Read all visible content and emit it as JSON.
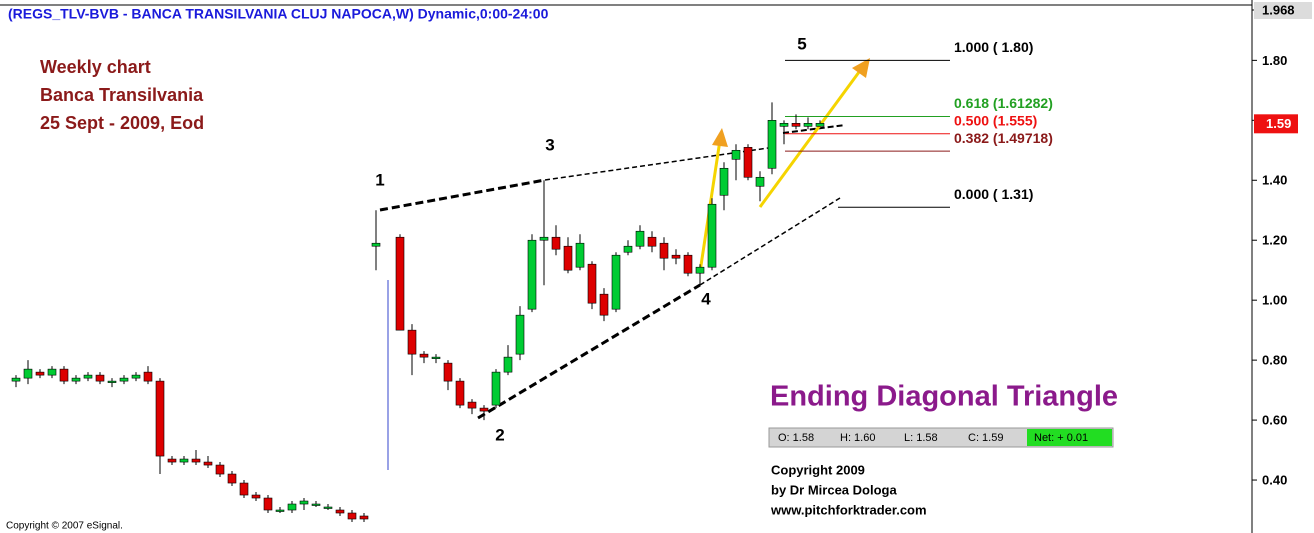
{
  "chart_data": {
    "type": "candlestick",
    "title": "(REGS_TLV-BVB - BANCA TRANSILVANIA CLUJ NAPOCA,W) Dynamic,0:00-24:00",
    "up_color": "#00cc33",
    "down_color": "#dd0000",
    "ylim": [
      0.23,
      1.968
    ],
    "yticks": [
      {
        "value": 0.4,
        "label": "0.40"
      },
      {
        "value": 0.6,
        "label": "0.60"
      },
      {
        "value": 0.8,
        "label": "0.80"
      },
      {
        "value": 1.0,
        "label": "1.00"
      },
      {
        "value": 1.2,
        "label": "1.20"
      },
      {
        "value": 1.4,
        "label": "1.40"
      },
      {
        "value": 1.6,
        "label": "1.60"
      },
      {
        "value": 1.8,
        "label": "1.80"
      },
      1.968
    ],
    "last_price": {
      "value": 1.59,
      "label": "1.59"
    },
    "series": {
      "open": [
        0.73,
        0.74,
        0.76,
        0.75,
        0.77,
        0.73,
        0.74,
        0.75,
        0.73,
        0.73,
        0.74,
        0.76,
        0.73,
        0.47,
        0.46,
        0.47,
        0.46,
        0.45,
        0.42,
        0.39,
        0.35,
        0.34,
        0.3,
        0.3,
        0.32,
        0.32,
        0.31,
        0.3,
        0.29,
        0.28,
        1.18,
        null,
        1.21,
        0.9,
        0.82,
        0.81,
        0.79,
        0.73,
        0.66,
        0.64,
        0.65,
        0.76,
        0.82,
        0.97,
        1.2,
        1.21,
        1.18,
        1.11,
        1.12,
        1.02,
        0.97,
        1.16,
        1.18,
        1.21,
        1.19,
        1.15,
        1.15,
        1.09,
        1.11,
        1.35,
        1.47,
        1.51,
        1.38,
        1.44,
        1.58,
        1.59,
        1.58,
        1.58
      ],
      "high": [
        0.75,
        0.8,
        0.77,
        0.78,
        0.78,
        0.75,
        0.76,
        0.76,
        0.74,
        0.75,
        0.76,
        0.78,
        0.74,
        0.48,
        0.48,
        0.5,
        0.48,
        0.46,
        0.43,
        0.4,
        0.36,
        0.35,
        0.31,
        0.33,
        0.34,
        0.33,
        0.32,
        0.31,
        0.3,
        0.29,
        1.3,
        null,
        1.22,
        0.92,
        0.83,
        0.82,
        0.8,
        0.74,
        0.67,
        0.65,
        0.77,
        0.85,
        0.98,
        1.22,
        1.4,
        1.25,
        1.21,
        1.22,
        1.13,
        1.04,
        1.16,
        1.2,
        1.25,
        1.23,
        1.21,
        1.17,
        1.16,
        1.12,
        1.34,
        1.46,
        1.52,
        1.52,
        1.43,
        1.66,
        1.6,
        1.62,
        1.61,
        1.6
      ],
      "low": [
        0.71,
        0.72,
        0.74,
        0.74,
        0.72,
        0.72,
        0.73,
        0.72,
        0.71,
        0.72,
        0.73,
        0.72,
        0.42,
        0.45,
        0.45,
        0.45,
        0.44,
        0.41,
        0.38,
        0.34,
        0.33,
        0.29,
        0.29,
        0.29,
        0.3,
        0.31,
        0.3,
        0.28,
        0.26,
        0.26,
        1.1,
        null,
        0.9,
        0.75,
        0.79,
        0.79,
        0.7,
        0.64,
        0.62,
        0.6,
        0.64,
        0.75,
        0.8,
        0.96,
        1.05,
        1.15,
        1.09,
        1.1,
        0.97,
        0.93,
        0.96,
        1.15,
        1.17,
        1.16,
        1.1,
        1.12,
        1.08,
        1.05,
        1.1,
        1.3,
        1.4,
        1.4,
        1.33,
        1.42,
        1.52,
        1.57,
        1.57,
        1.58
      ],
      "close": [
        0.74,
        0.77,
        0.75,
        0.77,
        0.73,
        0.74,
        0.75,
        0.73,
        0.73,
        0.74,
        0.75,
        0.73,
        0.48,
        0.46,
        0.47,
        0.46,
        0.45,
        0.42,
        0.39,
        0.35,
        0.34,
        0.3,
        0.3,
        0.32,
        0.33,
        0.32,
        0.31,
        0.29,
        0.27,
        0.27,
        1.19,
        null,
        0.9,
        0.82,
        0.81,
        0.81,
        0.73,
        0.65,
        0.64,
        0.63,
        0.76,
        0.81,
        0.95,
        1.2,
        1.21,
        1.17,
        1.1,
        1.19,
        0.99,
        0.95,
        1.15,
        1.18,
        1.23,
        1.18,
        1.14,
        1.14,
        1.09,
        1.11,
        1.32,
        1.44,
        1.5,
        1.41,
        1.41,
        1.6,
        1.59,
        1.58,
        1.59,
        1.59
      ]
    },
    "fib_levels": [
      {
        "value": 1.8,
        "label": "1.000 ( 1.80)",
        "color": "#000000"
      },
      {
        "value": 1.61282,
        "label": "0.618 (1.61282)",
        "color": "#22a022"
      },
      {
        "value": 1.555,
        "label": "0.500 (1.555)",
        "color": "#ee1111"
      },
      {
        "value": 1.49718,
        "label": "0.382 (1.49718)",
        "color": "#8b1a1a"
      },
      {
        "value": 1.31,
        "label": "0.000 ( 1.31)",
        "color": "#000000"
      }
    ],
    "waves": [
      "1",
      "2",
      "3",
      "4",
      "5"
    ],
    "note": [
      "Weekly chart",
      "Banca Transilvania",
      "25 Sept - 2009, Eod"
    ],
    "pattern": "Ending Diagonal Triangle",
    "ohlc": [
      "O: 1.58",
      "H: 1.60",
      "L: 1.58",
      "C: 1.59"
    ],
    "net": "Net: + 0.01",
    "copyright": [
      "Copyright 2009",
      "by Dr Mircea Dologa",
      "www.pitchforktrader.com"
    ],
    "source": "Copyright © 2007 eSignal."
  }
}
